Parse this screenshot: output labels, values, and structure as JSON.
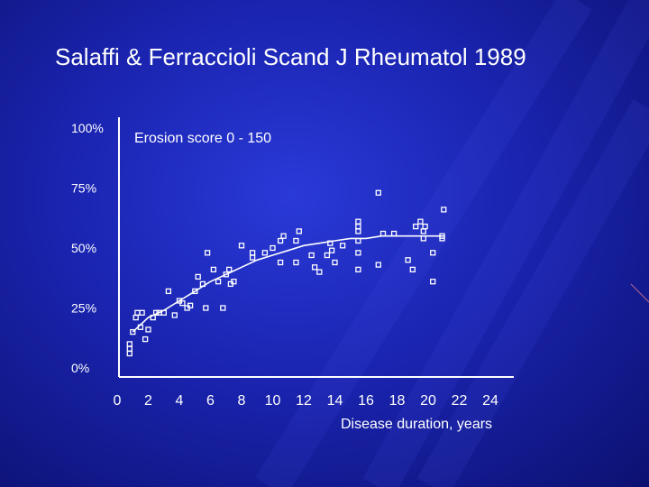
{
  "slide": {
    "title": "Salaffi & Ferraccioli Scand J Rheumatol 1989"
  },
  "colors": {
    "axis": "#ffffff",
    "marker": "#ffffff",
    "trend": "#ffffff"
  },
  "chart_data": {
    "type": "scatter",
    "title": "Erosion score 0 - 150",
    "xlabel": "Disease duration, years",
    "ylabel": "",
    "xlim": [
      0,
      24
    ],
    "ylim": [
      0,
      100
    ],
    "x_ticks": [
      0,
      2,
      4,
      6,
      8,
      10,
      12,
      14,
      16,
      18,
      20,
      22,
      24
    ],
    "x_tick_labels": [
      "0",
      "2",
      "4",
      "6",
      "8",
      "10",
      "12",
      "14",
      "16",
      "18",
      "20",
      "22",
      "24"
    ],
    "y_ticks": [
      0,
      25,
      50,
      75,
      100
    ],
    "y_tick_labels": [
      "0%",
      "25%",
      "50%",
      "75%",
      "100%"
    ],
    "grid": false,
    "legend": "none",
    "series": [
      {
        "points": [
          [
            0.8,
            10
          ],
          [
            0.8,
            8
          ],
          [
            0.8,
            6
          ],
          [
            1.0,
            15
          ],
          [
            1.2,
            21
          ],
          [
            1.3,
            23
          ],
          [
            1.5,
            17
          ],
          [
            1.6,
            23
          ],
          [
            1.8,
            12
          ],
          [
            2.0,
            16
          ],
          [
            2.3,
            21
          ],
          [
            2.5,
            23
          ],
          [
            2.7,
            23
          ],
          [
            3.0,
            23
          ],
          [
            3.3,
            32
          ],
          [
            3.7,
            22
          ],
          [
            4.0,
            28
          ],
          [
            4.2,
            27
          ],
          [
            4.5,
            25
          ],
          [
            4.7,
            26
          ],
          [
            5.0,
            32
          ],
          [
            5.2,
            38
          ],
          [
            5.5,
            35
          ],
          [
            5.7,
            25
          ],
          [
            5.8,
            48
          ],
          [
            6.2,
            41
          ],
          [
            6.5,
            36
          ],
          [
            6.8,
            25
          ],
          [
            7.0,
            39
          ],
          [
            7.2,
            41
          ],
          [
            7.3,
            35
          ],
          [
            7.5,
            36
          ],
          [
            8.0,
            51
          ],
          [
            8.7,
            46
          ],
          [
            8.7,
            48
          ],
          [
            9.5,
            48
          ],
          [
            10.0,
            50
          ],
          [
            10.5,
            53
          ],
          [
            10.5,
            44
          ],
          [
            10.7,
            55
          ],
          [
            11.5,
            44
          ],
          [
            11.5,
            53
          ],
          [
            11.7,
            57
          ],
          [
            12.5,
            47
          ],
          [
            12.7,
            42
          ],
          [
            13.0,
            40
          ],
          [
            13.5,
            47
          ],
          [
            13.7,
            52
          ],
          [
            13.8,
            49
          ],
          [
            14.0,
            44
          ],
          [
            14.5,
            51
          ],
          [
            15.5,
            61
          ],
          [
            15.5,
            59
          ],
          [
            15.5,
            57
          ],
          [
            15.5,
            53
          ],
          [
            15.5,
            48
          ],
          [
            15.5,
            41
          ],
          [
            16.8,
            73
          ],
          [
            16.8,
            43
          ],
          [
            17.1,
            56
          ],
          [
            17.8,
            56
          ],
          [
            18.7,
            45
          ],
          [
            19.0,
            41
          ],
          [
            19.2,
            59
          ],
          [
            19.5,
            61
          ],
          [
            19.7,
            54
          ],
          [
            19.7,
            57
          ],
          [
            19.8,
            59
          ],
          [
            20.3,
            48
          ],
          [
            20.3,
            36
          ],
          [
            20.9,
            55
          ],
          [
            20.9,
            54
          ],
          [
            21.0,
            66
          ]
        ]
      }
    ],
    "trend_line": [
      [
        1.0,
        15
      ],
      [
        2.0,
        21
      ],
      [
        3.0,
        24
      ],
      [
        4.0,
        28
      ],
      [
        5.0,
        32
      ],
      [
        6.0,
        36
      ],
      [
        7.0,
        39
      ],
      [
        8.0,
        42
      ],
      [
        9.0,
        45
      ],
      [
        10.0,
        47
      ],
      [
        11.0,
        49
      ],
      [
        12.0,
        51
      ],
      [
        13.0,
        52
      ],
      [
        14.0,
        53
      ],
      [
        15.0,
        54
      ],
      [
        16.0,
        54
      ],
      [
        17.0,
        55
      ],
      [
        18.0,
        55
      ],
      [
        19.0,
        55
      ],
      [
        20.0,
        55
      ],
      [
        21.0,
        55
      ]
    ]
  }
}
